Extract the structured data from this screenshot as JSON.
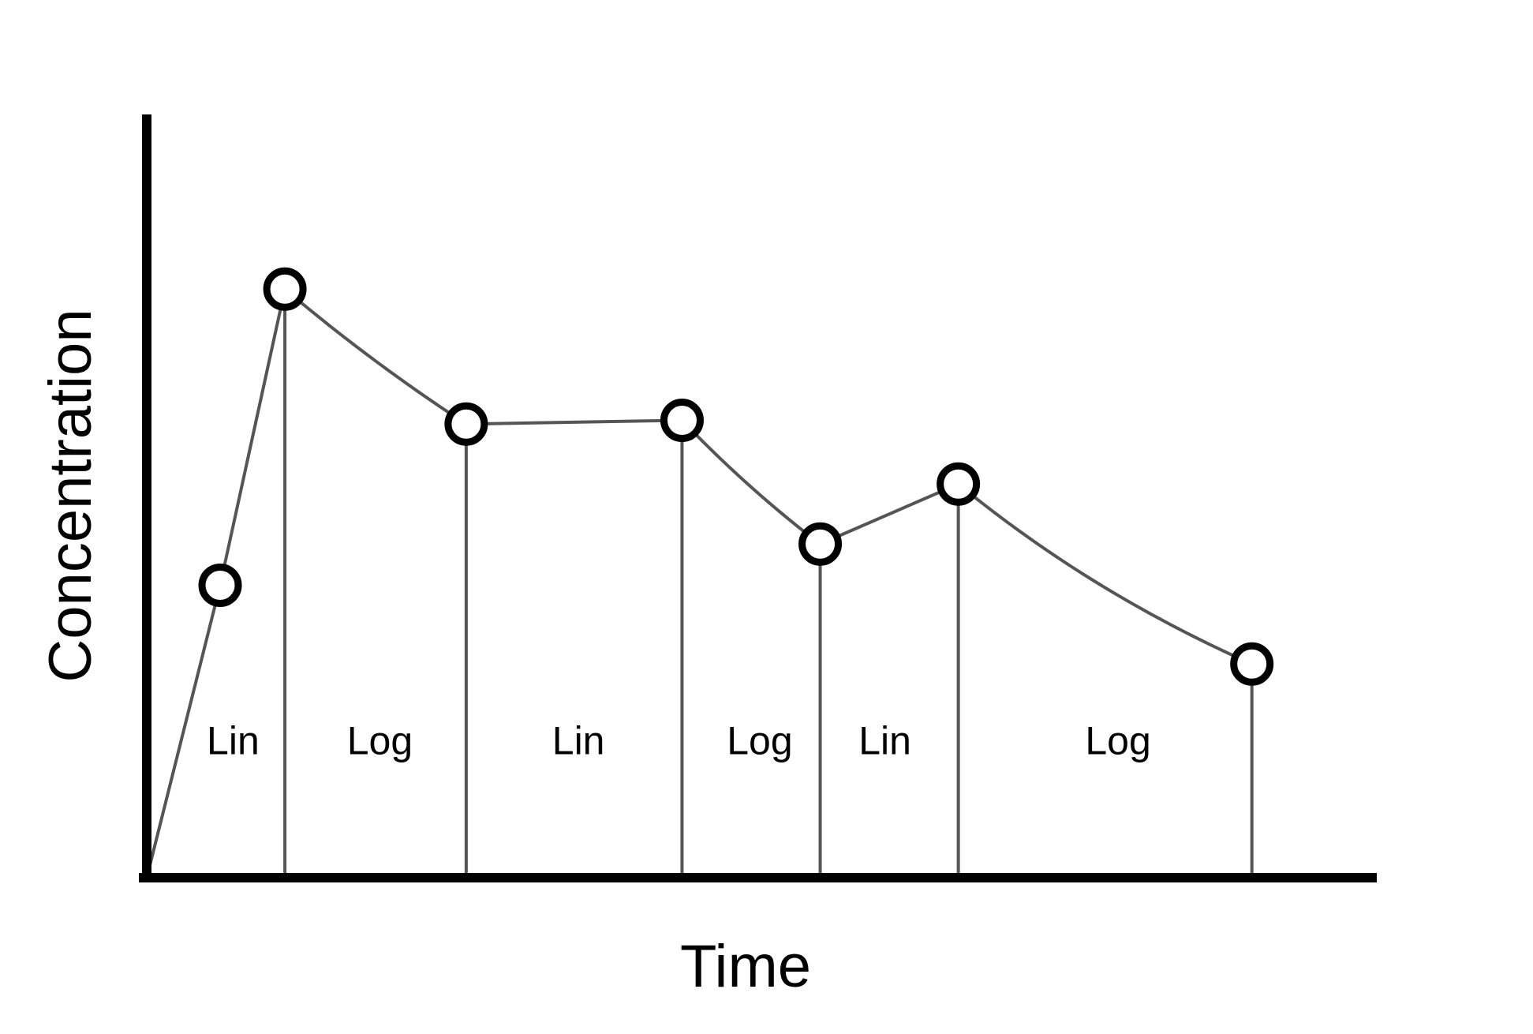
{
  "chart_data": {
    "type": "line",
    "xlabel": "Time",
    "ylabel": "Concentration",
    "grid": false,
    "legend": "none",
    "colors": {
      "axis": "#000000",
      "curve": "#555555",
      "marker_fill": "#ffffff",
      "marker_stroke": "#000000"
    },
    "xlim": [
      0,
      14
    ],
    "ylim": [
      0,
      10
    ],
    "points": [
      {
        "x": 0.0,
        "y": 0.0,
        "marker": false
      },
      {
        "x": 0.85,
        "y": 3.9,
        "marker": true
      },
      {
        "x": 1.6,
        "y": 7.85,
        "marker": true
      },
      {
        "x": 3.7,
        "y": 6.05,
        "marker": true
      },
      {
        "x": 6.2,
        "y": 6.1,
        "marker": true
      },
      {
        "x": 7.8,
        "y": 4.45,
        "marker": true
      },
      {
        "x": 9.4,
        "y": 5.25,
        "marker": true
      },
      {
        "x": 12.8,
        "y": 2.85,
        "marker": true
      }
    ],
    "interval_boundaries_x": [
      1.6,
      3.7,
      6.2,
      7.8,
      9.4,
      12.8
    ],
    "segment_methods": [
      "lin",
      "lin",
      "log",
      "lin",
      "log",
      "lin",
      "log"
    ],
    "region_labels": [
      {
        "text": "Lin",
        "x": 1.0,
        "y": 1.65
      },
      {
        "text": "Log",
        "x": 2.7,
        "y": 1.65
      },
      {
        "text": "Lin",
        "x": 5.0,
        "y": 1.65
      },
      {
        "text": "Log",
        "x": 7.1,
        "y": 1.65
      },
      {
        "text": "Lin",
        "x": 8.55,
        "y": 1.65
      },
      {
        "text": "Log",
        "x": 11.25,
        "y": 1.65
      }
    ]
  }
}
